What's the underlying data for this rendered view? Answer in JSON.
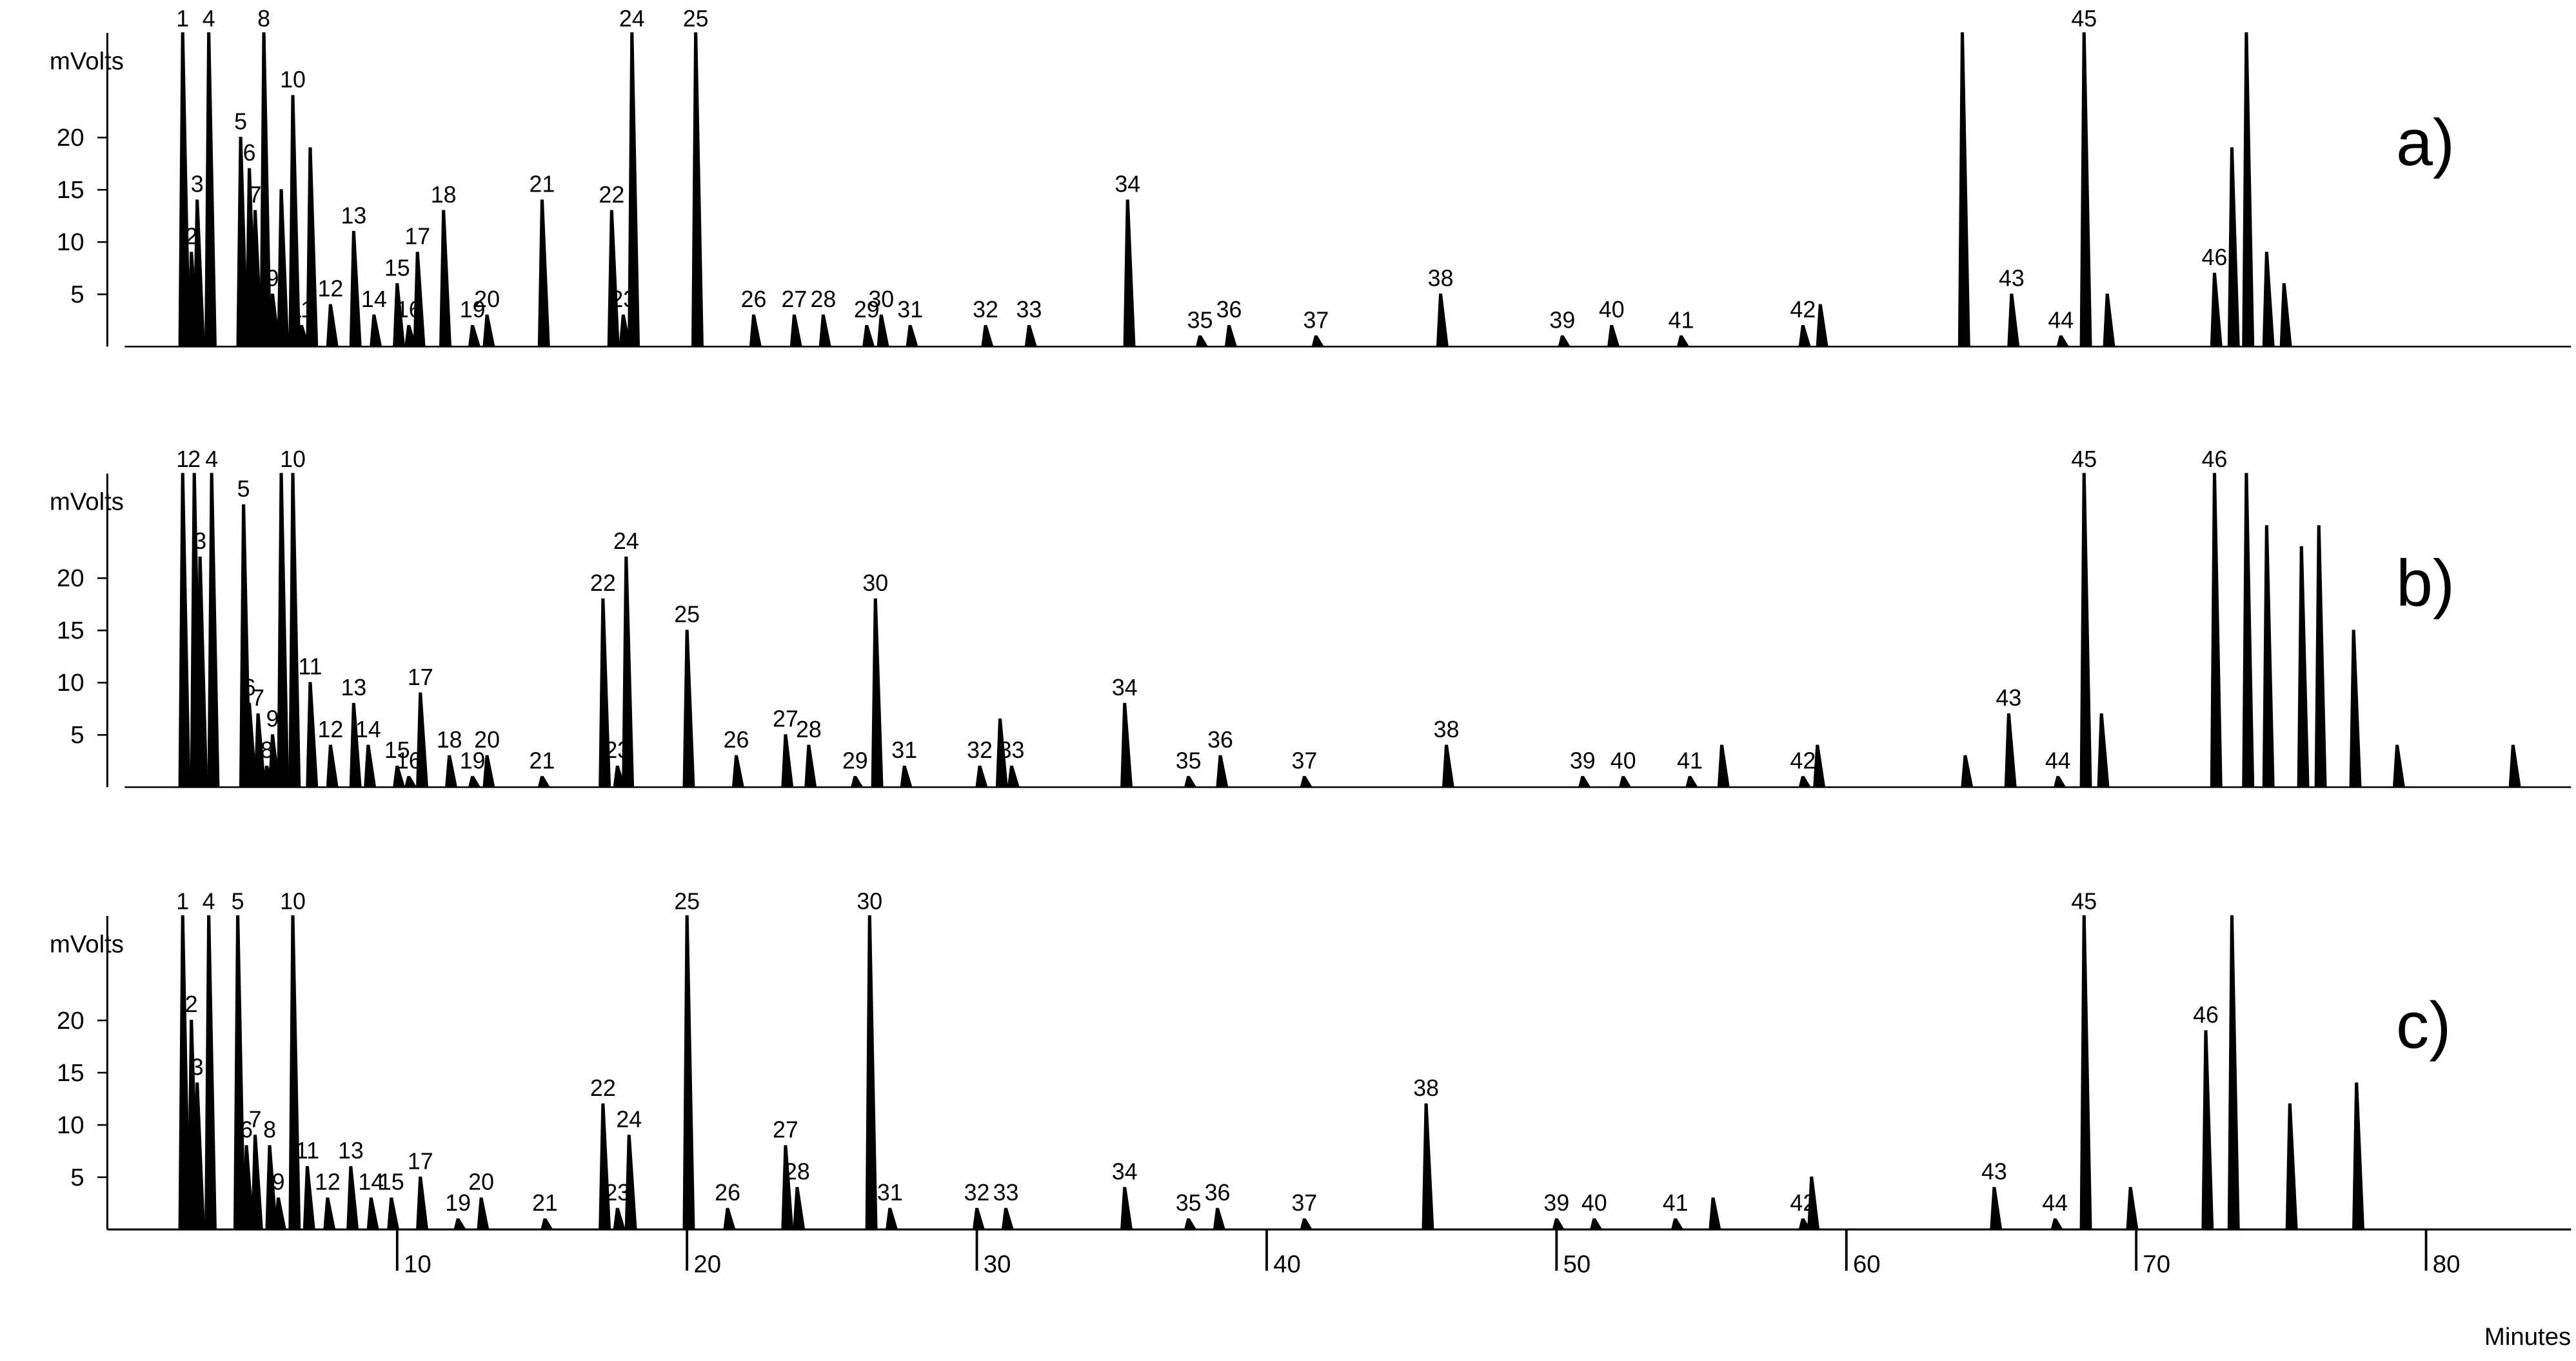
{
  "chart_data": [
    {
      "type": "line",
      "panel": "a)",
      "y_label": "mVolts",
      "color": "#000000",
      "xlim": [
        0,
        85
      ],
      "ylim": [
        0,
        30
      ],
      "yticks": [
        5,
        10,
        15,
        20
      ],
      "x": [
        2.6,
        2.9,
        3.1,
        3.5,
        4.6,
        4.9,
        5.1,
        5.4,
        5.7,
        6.0,
        6.4,
        6.7,
        7.0,
        7.7,
        8.5,
        9.2,
        10.0,
        10.4,
        10.7,
        11.6,
        12.6,
        13.1,
        15.0,
        17.4,
        17.8,
        18.1,
        20.3,
        22.3,
        23.7,
        24.7,
        26.2,
        26.7,
        27.7,
        30.3,
        31.8,
        35.2,
        37.7,
        38.7,
        41.7,
        46.0,
        50.2,
        51.9,
        54.3,
        58.5,
        59.1,
        64.0,
        65.7,
        67.4,
        68.2,
        69.0,
        72.7,
        73.3,
        73.8,
        74.5,
        75.1
      ],
      "values": [
        30,
        9,
        14,
        30,
        20,
        17,
        13,
        30,
        5,
        15,
        24,
        2,
        19,
        4,
        11,
        3,
        6,
        2,
        9,
        13,
        2,
        3,
        14,
        13,
        3,
        30,
        30,
        3,
        3,
        3,
        2,
        3,
        2,
        2,
        2,
        14,
        1,
        2,
        1,
        5,
        1,
        2,
        1,
        2,
        4,
        30,
        5,
        1,
        30,
        5,
        7,
        19,
        30,
        9,
        6
      ],
      "labels": [
        "1",
        "2",
        "3",
        "4",
        "5",
        "6",
        "7",
        "8",
        "9",
        null,
        "10",
        "11",
        null,
        "12",
        "13",
        "14",
        "15",
        "16",
        "17",
        "18",
        "19",
        "20",
        "21",
        "22",
        "23",
        "24",
        "25",
        "26",
        "27",
        "28",
        "29",
        "30",
        "31",
        "32",
        "33",
        "34",
        "35",
        "36",
        "37",
        "38",
        "39",
        "40",
        "41",
        "42",
        null,
        null,
        "43",
        "44",
        "45",
        null,
        "46",
        null,
        null,
        null,
        null
      ]
    },
    {
      "type": "line",
      "panel": "b)",
      "y_label": "mVolts",
      "color": "#000000",
      "xlim": [
        0,
        85
      ],
      "ylim": [
        0,
        30
      ],
      "yticks": [
        5,
        10,
        15,
        20
      ],
      "x": [
        2.6,
        3.0,
        3.2,
        3.6,
        4.7,
        4.9,
        5.2,
        5.5,
        5.7,
        6.0,
        6.4,
        7.0,
        7.7,
        8.5,
        9.0,
        10.0,
        10.4,
        10.8,
        11.8,
        12.6,
        13.1,
        15.0,
        17.1,
        17.6,
        17.9,
        20.0,
        21.7,
        23.4,
        24.2,
        25.8,
        26.5,
        27.5,
        30.1,
        30.8,
        31.2,
        35.1,
        37.3,
        38.4,
        41.3,
        46.2,
        50.9,
        52.3,
        54.6,
        55.7,
        58.5,
        59.0,
        64.1,
        65.6,
        67.3,
        68.2,
        68.8,
        72.7,
        73.8,
        74.5,
        75.7,
        76.3,
        77.5,
        79.0,
        83.0
      ],
      "values": [
        30,
        30,
        22,
        30,
        27,
        8,
        7,
        2,
        5,
        30,
        30,
        10,
        4,
        8,
        4,
        2,
        1,
        9,
        3,
        1,
        3,
        1,
        18,
        2,
        22,
        15,
        3,
        5,
        4,
        1,
        18,
        2,
        2,
        6.5,
        2,
        8,
        1,
        3,
        1,
        4,
        1,
        1,
        1,
        4,
        1,
        4,
        3,
        7,
        1,
        30,
        7,
        30,
        30,
        25,
        23,
        25,
        15,
        4,
        4
      ],
      "labels": [
        "1",
        "2",
        "3",
        "4",
        "5",
        "6",
        "7",
        "8",
        "9",
        null,
        "10",
        "11",
        "12",
        "13",
        "14",
        "15",
        "16",
        "17",
        "18",
        "19",
        "20",
        "21",
        "22",
        "23",
        "24",
        "25",
        "26",
        "27",
        "28",
        "29",
        "30",
        "31",
        "32",
        null,
        "33",
        "34",
        "35",
        "36",
        "37",
        "38",
        "39",
        "40",
        "41",
        null,
        "42",
        null,
        null,
        "43",
        "44",
        "45",
        null,
        "46",
        null,
        null,
        null,
        null,
        null,
        null,
        null
      ]
    },
    {
      "type": "line",
      "panel": "c)",
      "y_label": "mVolts",
      "x_label": "Minutes",
      "color": "#000000",
      "xlim": [
        0,
        85
      ],
      "xticks": [
        10,
        20,
        30,
        40,
        50,
        60,
        70,
        80
      ],
      "ylim": [
        0,
        30
      ],
      "yticks": [
        5,
        10,
        15,
        20
      ],
      "x": [
        2.6,
        2.9,
        3.1,
        3.5,
        4.5,
        4.8,
        5.1,
        5.6,
        5.9,
        6.4,
        6.9,
        7.6,
        8.4,
        9.1,
        9.8,
        10.8,
        12.1,
        12.9,
        15.1,
        17.1,
        17.6,
        18.0,
        20.0,
        21.4,
        23.4,
        23.8,
        26.3,
        27.0,
        30.0,
        31.0,
        35.1,
        37.3,
        38.3,
        41.3,
        45.5,
        50.0,
        51.3,
        54.1,
        55.4,
        58.5,
        58.8,
        65.1,
        67.2,
        68.2,
        69.8,
        72.4,
        73.3,
        75.3,
        77.6
      ],
      "values": [
        30,
        20,
        14,
        30,
        30,
        8,
        9,
        8,
        3,
        30,
        6,
        3,
        6,
        3,
        3,
        5,
        1,
        3,
        1,
        12,
        2,
        9,
        30,
        2,
        8,
        4,
        30,
        2,
        2,
        2,
        4,
        1,
        2,
        1,
        12,
        1,
        1,
        1,
        3,
        1,
        5,
        4,
        1,
        30,
        4,
        19,
        30,
        12,
        14
      ],
      "labels": [
        "1",
        "2",
        "3",
        "4",
        "5",
        "6",
        "7",
        "8",
        "9",
        "10",
        "11",
        "12",
        "13",
        "14",
        "15",
        "17",
        "19",
        "20",
        "21",
        "22",
        "23",
        "24",
        "25",
        "26",
        "27",
        "28",
        "30",
        "31",
        "32",
        "33",
        "34",
        "35",
        "36",
        "37",
        "38",
        "39",
        "40",
        "41",
        null,
        "42",
        null,
        "43",
        "44",
        "45",
        null,
        "46",
        null,
        null,
        null
      ]
    }
  ]
}
